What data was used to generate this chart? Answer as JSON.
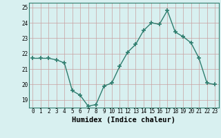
{
  "x": [
    0,
    1,
    2,
    3,
    4,
    5,
    6,
    7,
    8,
    9,
    10,
    11,
    12,
    13,
    14,
    15,
    16,
    17,
    18,
    19,
    20,
    21,
    22,
    23
  ],
  "y": [
    21.7,
    21.7,
    21.7,
    21.6,
    21.4,
    19.6,
    19.3,
    18.6,
    18.7,
    19.9,
    20.1,
    21.2,
    22.1,
    22.6,
    23.5,
    24.0,
    23.9,
    24.8,
    23.4,
    23.1,
    22.7,
    21.7,
    20.1,
    20.0
  ],
  "line_color": "#2e7d6e",
  "marker": "+",
  "markersize": 4,
  "linewidth": 1.0,
  "bg_color": "#d8f0f0",
  "grid_color": "#c8a0a0",
  "xlabel": "Humidex (Indice chaleur)",
  "ylim": [
    18.5,
    25.3
  ],
  "yticks": [
    19,
    20,
    21,
    22,
    23,
    24,
    25
  ],
  "xticks": [
    0,
    1,
    2,
    3,
    4,
    5,
    6,
    7,
    8,
    9,
    10,
    11,
    12,
    13,
    14,
    15,
    16,
    17,
    18,
    19,
    20,
    21,
    22,
    23
  ],
  "tick_fontsize": 5.5,
  "xlabel_fontsize": 7.5
}
